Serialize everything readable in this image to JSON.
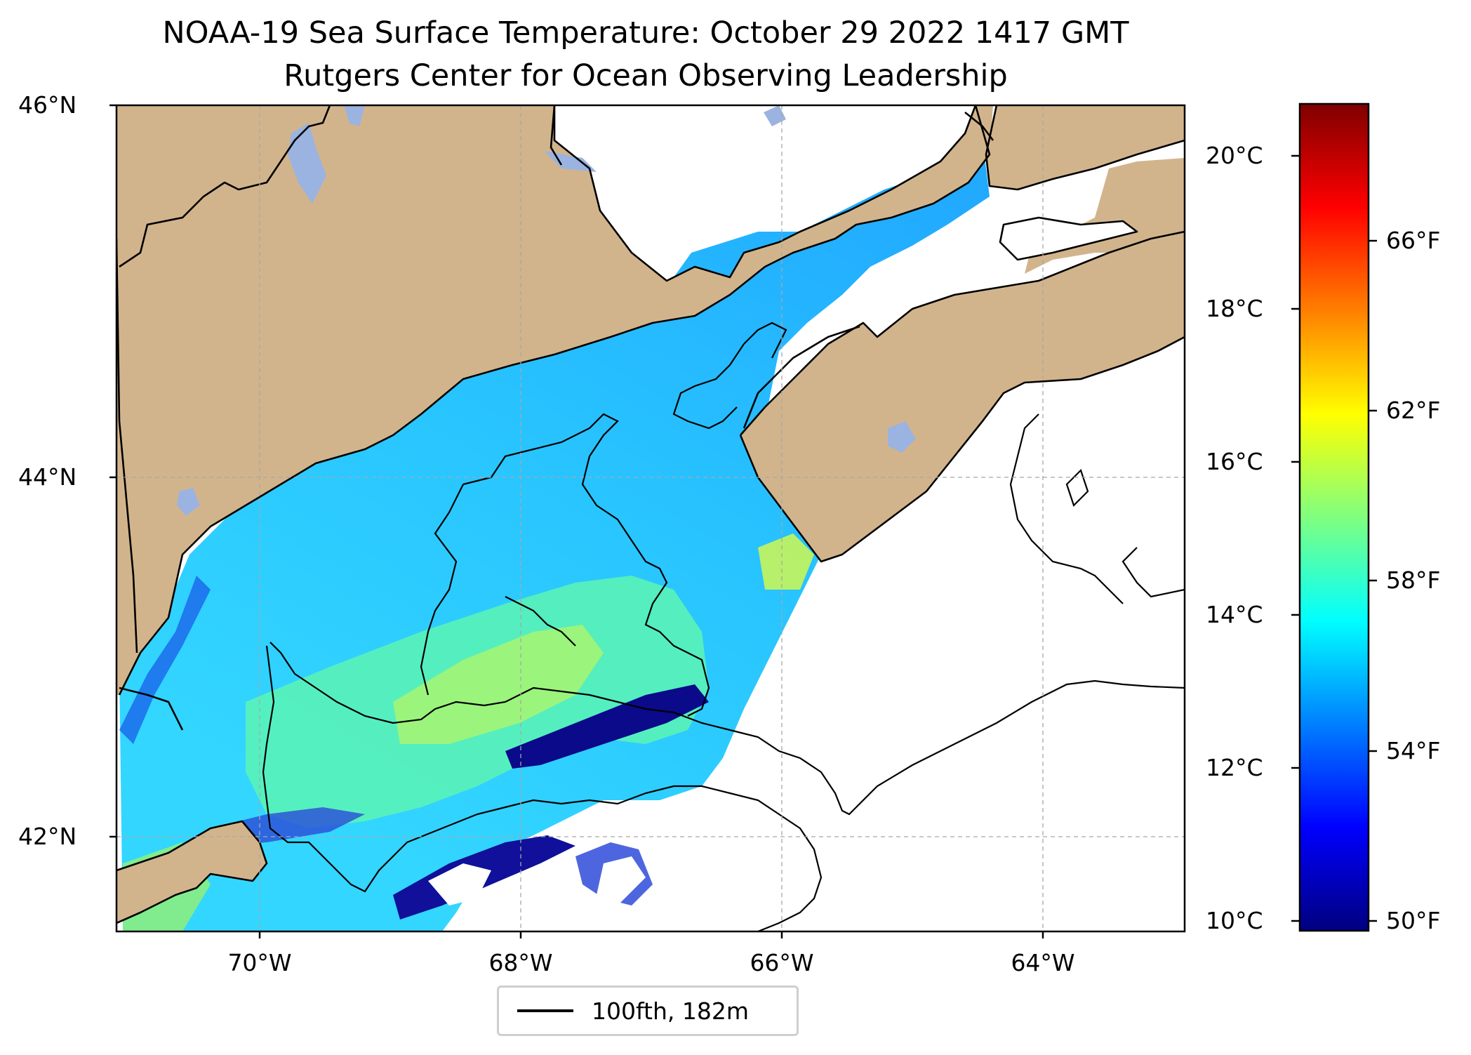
{
  "title": {
    "line1": "NOAA-19 Sea Surface Temperature: October 29 2022 1417 GMT",
    "line2": "Rutgers Center for Ocean Observing Leadership"
  },
  "map": {
    "lon_range": [
      -71.2,
      -63.0
    ],
    "lat_range": [
      41.5,
      46.0
    ],
    "lat_ticks": [
      {
        "value": 46,
        "label": "46°N"
      },
      {
        "value": 44,
        "label": "44°N"
      },
      {
        "value": 42,
        "label": "42°N"
      }
    ],
    "lon_ticks": [
      {
        "value": -70,
        "label": "70°W"
      },
      {
        "value": -68,
        "label": "68°W"
      },
      {
        "value": -66,
        "label": "66°W"
      },
      {
        "value": -64,
        "label": "64°W"
      }
    ],
    "gridlines": true,
    "colors": {
      "land": "#d2b48c",
      "lake": "#9bb3e0",
      "coastline": "#000000",
      "contour": "#000000",
      "no_data": "#ffffff"
    }
  },
  "colorbar": {
    "colormap": "jet",
    "range_c": [
      9.9,
      20.9
    ],
    "celsius_ticks": [
      {
        "value": 20,
        "label": "20°C"
      },
      {
        "value": 18,
        "label": "18°C"
      },
      {
        "value": 16,
        "label": "16°C"
      },
      {
        "value": 14,
        "label": "14°C"
      },
      {
        "value": 12,
        "label": "12°C"
      },
      {
        "value": 10,
        "label": "10°C"
      }
    ],
    "fahrenheit_ticks": [
      {
        "value": 66,
        "label": "66°F"
      },
      {
        "value": 62,
        "label": "62°F"
      },
      {
        "value": 58,
        "label": "58°F"
      },
      {
        "value": 54,
        "label": "54°F"
      },
      {
        "value": 50,
        "label": "50°F"
      }
    ],
    "stops": [
      "#00007f",
      "#0000ff",
      "#007fff",
      "#00ffff",
      "#7fff7f",
      "#ffff00",
      "#ff7f00",
      "#ff0000",
      "#7f0000"
    ]
  },
  "legend": {
    "label": "100fth, 182m",
    "location": "lower-center"
  }
}
